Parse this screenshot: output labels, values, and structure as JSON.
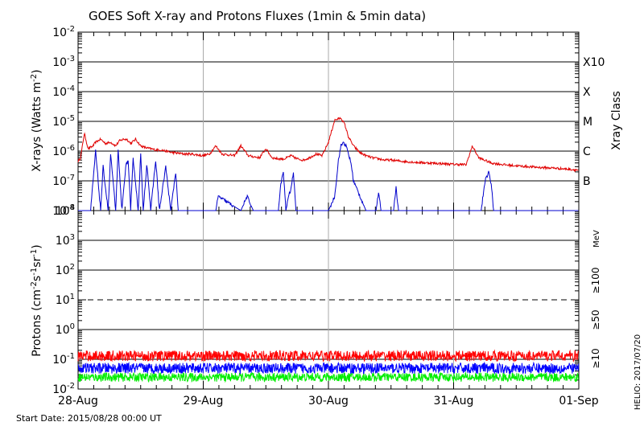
{
  "colors": {
    "xray_long": "#e00000",
    "xray_short": "#0000cc",
    "p10": "#ff0000",
    "p50": "#0000ff",
    "p100": "#00ee00"
  },
  "title": "GOES Soft X-ray and Protons Fluxes   (1min & 5min data)",
  "start_date": "Start Date: 2015/08/28 00:00 UT",
  "credit": "HELIO: 2017/07/20",
  "x_ticks": [
    "28-Aug",
    "29-Aug",
    "30-Aug",
    "31-Aug",
    "01-Sep"
  ],
  "chart_data": [
    {
      "type": "line",
      "ylabel": "X-rays (Watts m^-2)",
      "yscale": "log",
      "ylim": [
        1e-08,
        0.01
      ],
      "y_tick_labels": [
        {
          "base": "10",
          "exp": "-2"
        },
        {
          "base": "10",
          "exp": "-3"
        },
        {
          "base": "10",
          "exp": "-4"
        },
        {
          "base": "10",
          "exp": "-5"
        },
        {
          "base": "10",
          "exp": "-6"
        },
        {
          "base": "10",
          "exp": "-7"
        },
        {
          "base": "10",
          "exp": "-8"
        }
      ],
      "class_axis_label": "Xray Class",
      "class_labels": [
        "X10",
        "X",
        "M",
        "C",
        "B"
      ],
      "xlim": [
        "2015-08-28",
        "2015-09-01"
      ],
      "grid": true,
      "series": [
        {
          "band": "long",
          "x": [
            0,
            0.02,
            0.05,
            0.08,
            0.12,
            0.14,
            0.18,
            0.22,
            0.26,
            0.3,
            0.33,
            0.36,
            0.39,
            0.42,
            0.46,
            0.5,
            0.54,
            0.58,
            0.62,
            0.66,
            0.7,
            0.75,
            0.8,
            0.85,
            0.9,
            0.95,
            1.0,
            1.05,
            1.1,
            1.15,
            1.2,
            1.25,
            1.3,
            1.36,
            1.4,
            1.45,
            1.5,
            1.55,
            1.6,
            1.65,
            1.7,
            1.75,
            1.8,
            1.85,
            1.9,
            1.95,
            2.0,
            2.05,
            2.1,
            2.13,
            2.16,
            2.2,
            2.25,
            2.3,
            2.35,
            2.4,
            2.45,
            2.5,
            2.6,
            2.7,
            2.8,
            2.9,
            3.0,
            3.1,
            3.15,
            3.2,
            3.3,
            3.4,
            3.5,
            3.6,
            3.7,
            3.8,
            3.9,
            4.0
          ],
          "y": [
            4.5e-07,
            6e-07,
            4e-06,
            1.2e-06,
            1.5e-06,
            2e-06,
            2.5e-06,
            1.8e-06,
            2e-06,
            1.5e-06,
            2.2e-06,
            2.5e-06,
            2.5e-06,
            1.8e-06,
            2.5e-06,
            1.5e-06,
            1.3e-06,
            1.2e-06,
            1.1e-06,
            1.1e-06,
            1e-06,
            9e-07,
            8.5e-07,
            8e-07,
            8e-07,
            7.5e-07,
            7e-07,
            8e-07,
            1.5e-06,
            8e-07,
            7.5e-07,
            7e-07,
            1.5e-06,
            7e-07,
            6.5e-07,
            6e-07,
            1.2e-06,
            6e-07,
            5.5e-07,
            5.5e-07,
            7e-07,
            5.5e-07,
            5e-07,
            6e-07,
            8e-07,
            7e-07,
            2e-06,
            1.1e-05,
            1.3e-05,
            8e-06,
            3e-06,
            1.5e-06,
            9e-07,
            7e-07,
            6e-07,
            5.5e-07,
            5e-07,
            5e-07,
            4.5e-07,
            4.2e-07,
            4e-07,
            3.8e-07,
            3.6e-07,
            3.5e-07,
            1.5e-06,
            6e-07,
            4e-07,
            3.5e-07,
            3.2e-07,
            3e-07,
            2.8e-07,
            2.7e-07,
            2.5e-07,
            2.3e-07
          ]
        },
        {
          "band": "short",
          "x": [
            0,
            0.1,
            0.14,
            0.18,
            0.2,
            0.24,
            0.26,
            0.3,
            0.32,
            0.35,
            0.38,
            0.4,
            0.42,
            0.44,
            0.48,
            0.5,
            0.52,
            0.55,
            0.58,
            0.62,
            0.65,
            0.7,
            0.74,
            0.78,
            0.8,
            0.82,
            0.9,
            0.95,
            1.05,
            1.1,
            1.12,
            1.3,
            1.35,
            1.4,
            1.55,
            1.6,
            1.62,
            1.64,
            1.66,
            1.68,
            1.7,
            1.72,
            1.74,
            2.0,
            2.05,
            2.08,
            2.1,
            2.12,
            2.14,
            2.16,
            2.18,
            2.2,
            2.3,
            2.38,
            2.4,
            2.42,
            2.5,
            2.52,
            2.54,
            2.56,
            3.2,
            3.22,
            3.25,
            3.28,
            3.3,
            3.32,
            4.0
          ],
          "y": [
            1e-08,
            1e-08,
            1e-06,
            1e-08,
            3e-07,
            1e-08,
            8e-07,
            1e-08,
            1e-06,
            1e-08,
            3e-07,
            5e-07,
            1e-08,
            6e-07,
            1e-08,
            8e-07,
            1e-08,
            4e-07,
            1e-08,
            5e-07,
            1e-08,
            3e-07,
            1e-08,
            2e-07,
            1e-08,
            1e-08,
            1e-08,
            1e-08,
            1e-08,
            1e-08,
            3e-08,
            1e-08,
            3e-08,
            1e-08,
            1e-08,
            1e-08,
            8e-08,
            2e-07,
            1e-08,
            3e-08,
            5e-08,
            2e-07,
            1e-08,
            1e-08,
            3e-08,
            5e-07,
            1.5e-06,
            2e-06,
            1.5e-06,
            8e-07,
            4e-07,
            1e-07,
            1e-08,
            1e-08,
            4e-08,
            1e-08,
            1e-08,
            1e-08,
            6e-08,
            1e-08,
            1e-08,
            1e-08,
            1e-07,
            2e-07,
            8e-08,
            1e-08,
            1e-08
          ]
        }
      ]
    },
    {
      "type": "line",
      "ylabel": "Protons (cm^-2 s^-1 sr^-1)",
      "yscale": "log",
      "ylim": [
        0.01,
        10000
      ],
      "y_tick_labels": [
        {
          "base": "10",
          "exp": "4"
        },
        {
          "base": "10",
          "exp": "3"
        },
        {
          "base": "10",
          "exp": "2"
        },
        {
          "base": "10",
          "exp": "1"
        },
        {
          "base": "10",
          "exp": "0"
        },
        {
          "base": "10",
          "exp": "-1"
        },
        {
          "base": "10",
          "exp": "-2"
        }
      ],
      "unit_label": "MeV",
      "threshold_line": 10,
      "xlim": [
        "2015-08-28",
        "2015-09-01"
      ],
      "grid": true,
      "series": [
        {
          "name": "≥10",
          "x": [
            0,
            1,
            2,
            3,
            4
          ],
          "y": [
            0.13,
            0.13,
            0.13,
            0.13,
            0.13
          ]
        },
        {
          "name": "≥50",
          "x": [
            0,
            1,
            2,
            3,
            4
          ],
          "y": [
            0.05,
            0.05,
            0.05,
            0.05,
            0.05
          ]
        },
        {
          "name": "≥100",
          "x": [
            0,
            1,
            2,
            3,
            4
          ],
          "y": [
            0.025,
            0.025,
            0.025,
            0.025,
            0.025
          ]
        }
      ]
    }
  ]
}
